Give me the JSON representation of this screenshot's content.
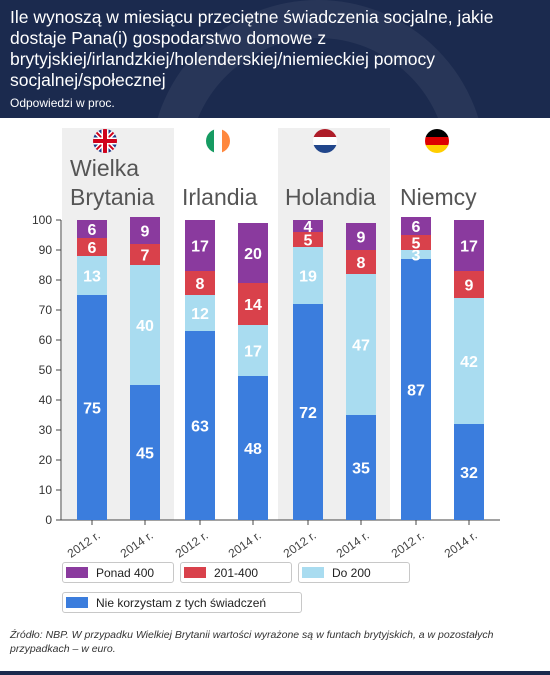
{
  "title": "Ile wynoszą w miesiącu przeciętne świadczenia socjalne, jakie dostaje Pana(i) gospodarstwo domowe z brytyjskiej/irlandzkiej/holenderskiej/niemieckiej pomocy socjalnej/społecznej",
  "subtitle": "Odpowiedzi w proc.",
  "source": "Źródło: NBP. W przypadku Wielkiej Brytanii wartości wyrażone są w funtach brytyjskich, a w pozostałych przypadkach – w euro.",
  "colors": {
    "header_bg": "#1b2a4e",
    "ponad_400": "#8a3a9e",
    "201_400": "#d9414b",
    "do_200": "#a9dcf0",
    "nie_korzystam": "#3b7ddd",
    "group_bg": "#efefef"
  },
  "countries": [
    {
      "name_line1": "Wielka",
      "name_line2": "Brytania",
      "flag": "uk-flag-icon"
    },
    {
      "name_line1": "",
      "name_line2": "Irlandia",
      "flag": "ireland-flag-icon"
    },
    {
      "name_line1": "",
      "name_line2": "Holandia",
      "flag": "netherlands-flag-icon"
    },
    {
      "name_line1": "",
      "name_line2": "Niemcy",
      "flag": "germany-flag-icon"
    }
  ],
  "legend": [
    {
      "label": "Ponad 400",
      "series": "Ponad 400"
    },
    {
      "label": "201-400",
      "series": "201-400"
    },
    {
      "label": "Do 200",
      "series": "Do 200"
    },
    {
      "label": "Nie korzystam z tych świadczeń",
      "series": "Nie korzystam z tych świadczeń"
    }
  ],
  "chart_data": {
    "type": "bar",
    "stacked": true,
    "categories": [
      "2012 r.",
      "2014 r.",
      "2012 r.",
      "2014 r.",
      "2012 r.",
      "2014 r.",
      "2012 r.",
      "2014 r."
    ],
    "groups": [
      "Wielka Brytania",
      "Irlandia",
      "Holandia",
      "Niemcy"
    ],
    "series": [
      {
        "name": "Nie korzystam z tych świadczeń",
        "values": [
          75,
          45,
          63,
          48,
          72,
          35,
          87,
          32
        ]
      },
      {
        "name": "Do 200",
        "values": [
          13,
          40,
          12,
          17,
          19,
          47,
          3,
          42
        ]
      },
      {
        "name": "201-400",
        "values": [
          6,
          7,
          8,
          14,
          5,
          8,
          5,
          9
        ]
      },
      {
        "name": "Ponad 400",
        "values": [
          6,
          9,
          17,
          20,
          4,
          9,
          6,
          17
        ]
      }
    ],
    "y_ticks": [
      0,
      10,
      20,
      30,
      40,
      50,
      60,
      70,
      80,
      90,
      100
    ],
    "ylim": [
      0,
      100
    ],
    "legend_position": "bottom-left"
  }
}
